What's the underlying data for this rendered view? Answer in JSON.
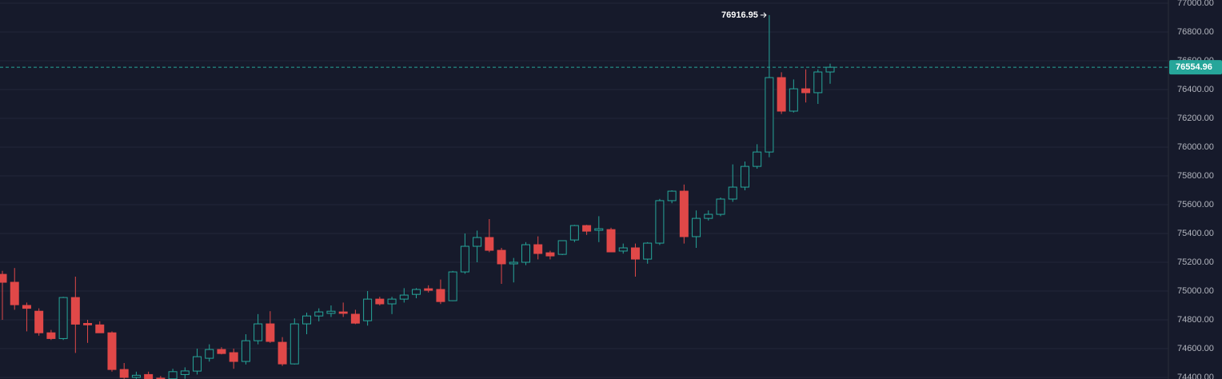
{
  "chart_data": {
    "type": "candlestick",
    "open": [
      75116,
      75061,
      74900,
      74860,
      74710,
      74670,
      74955,
      74775,
      74765,
      74710,
      74455,
      74400,
      74420,
      74395,
      74390,
      74420,
      74444,
      74533,
      74594,
      74572,
      74511,
      74655,
      74772,
      74644,
      74494,
      74772,
      74827,
      74845,
      74855,
      74839,
      74794,
      74944,
      74911,
      74944,
      74977,
      75016,
      75011,
      74933,
      75133,
      75311,
      75372,
      75283,
      75189,
      75200,
      75322,
      75266,
      75255,
      75355,
      75455,
      75422,
      75427,
      75278,
      75300,
      75222,
      75333,
      75628,
      75694,
      75378,
      75505,
      75533,
      75639,
      75722,
      75866,
      75966,
      76483,
      76250,
      76405,
      76378,
      76522
    ],
    "high": [
      75140,
      75160,
      74920,
      74880,
      74730,
      74960,
      75100,
      74800,
      74790,
      74720,
      74500,
      74440,
      74440,
      74410,
      74460,
      74470,
      74600,
      74630,
      74610,
      74600,
      74700,
      74840,
      74860,
      74680,
      74810,
      74850,
      74880,
      74900,
      74920,
      74870,
      75000,
      74960,
      74960,
      75020,
      75020,
      75040,
      75080,
      75140,
      75400,
      75420,
      75500,
      75300,
      75230,
      75340,
      75380,
      75280,
      75350,
      75460,
      75460,
      75520,
      75440,
      75330,
      75330,
      75340,
      75640,
      75700,
      75740,
      75560,
      75560,
      75650,
      75880,
      75900,
      76020,
      76916.95,
      76520,
      76470,
      76540,
      76540,
      76580
    ],
    "low": [
      74800,
      74870,
      74720,
      74690,
      74660,
      74660,
      74570,
      74640,
      74710,
      74440,
      74390,
      74390,
      74390,
      74380,
      74385,
      74390,
      74420,
      74510,
      74560,
      74460,
      74490,
      74630,
      74640,
      74480,
      74490,
      74700,
      74790,
      74820,
      74820,
      74770,
      74760,
      74900,
      74840,
      74920,
      74950,
      74990,
      74910,
      74930,
      75120,
      75200,
      75270,
      75050,
      75060,
      75180,
      75220,
      75220,
      75250,
      75340,
      75390,
      75340,
      75270,
      75260,
      75100,
      75190,
      75320,
      75610,
      75330,
      75300,
      75490,
      75520,
      75620,
      75700,
      75850,
      75930,
      76230,
      76240,
      76310,
      76300,
      76440
    ],
    "close": [
      75061,
      74905,
      74880,
      74710,
      74670,
      74955,
      74770,
      74765,
      74710,
      74455,
      74400,
      74415,
      74390,
      74385,
      74440,
      74445,
      74544,
      74594,
      74566,
      74511,
      74655,
      74772,
      74650,
      74494,
      74772,
      74827,
      74855,
      74860,
      74845,
      74777,
      74944,
      74911,
      74944,
      74972,
      75011,
      75005,
      74927,
      75133,
      75311,
      75372,
      75283,
      75189,
      75200,
      75322,
      75261,
      75244,
      75350,
      75455,
      75416,
      75433,
      75272,
      75300,
      75222,
      75333,
      75628,
      75694,
      75378,
      75505,
      75533,
      75639,
      75722,
      75866,
      75966,
      76483,
      76250,
      76405,
      76378,
      76522,
      76554.96
    ],
    "up_color": "#26a69a",
    "down_color": "#e04848",
    "ylim": [
      74389,
      77022
    ],
    "yticks": [
      {
        "value": 74400,
        "label": "74400.00"
      },
      {
        "value": 74600,
        "label": "74600.00"
      },
      {
        "value": 74800,
        "label": "74800.00"
      },
      {
        "value": 75000,
        "label": "75000.00"
      },
      {
        "value": 75200,
        "label": "75200.00"
      },
      {
        "value": 75400,
        "label": "75400.00"
      },
      {
        "value": 75600,
        "label": "75600.00"
      },
      {
        "value": 75800,
        "label": "75800.00"
      },
      {
        "value": 76000,
        "label": "76000.00"
      },
      {
        "value": 76200,
        "label": "76200.00"
      },
      {
        "value": 76400,
        "label": "76400.00"
      },
      {
        "value": 76600,
        "label": "76600.00"
      },
      {
        "value": 76800,
        "label": "76800.00"
      },
      {
        "value": 77000,
        "label": "77000.00"
      }
    ],
    "grid": true
  }
}
